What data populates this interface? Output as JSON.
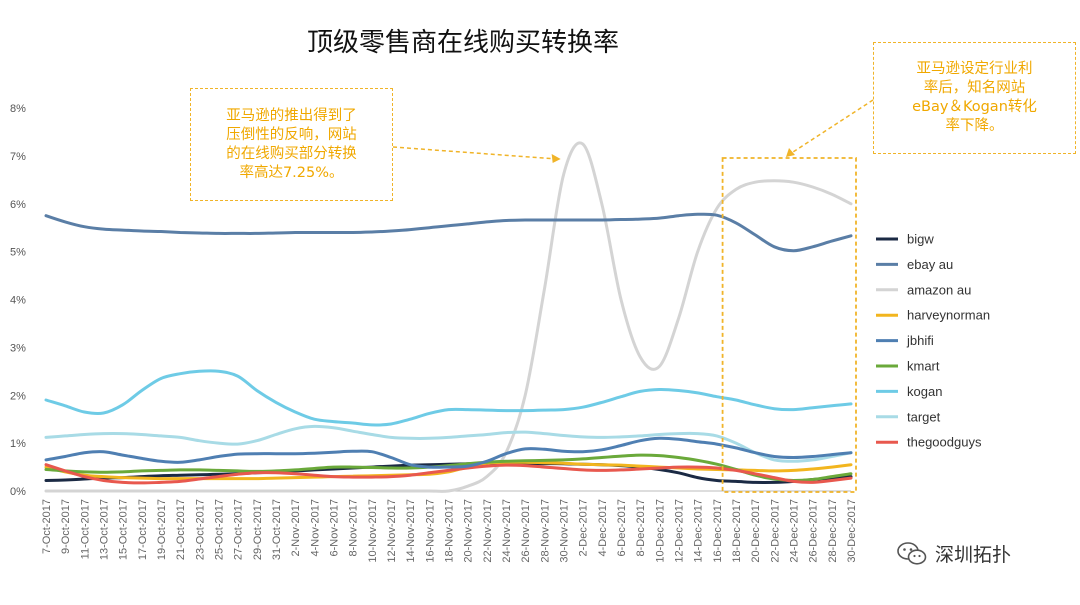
{
  "chart_data": {
    "type": "line",
    "title": "顶级零售商在线购买转换率",
    "xlabel": "",
    "ylabel": "",
    "ylim": [
      0,
      8
    ],
    "y_ticks": [
      "0%",
      "1%",
      "2%",
      "3%",
      "4%",
      "5%",
      "6%",
      "7%",
      "8%"
    ],
    "grid": false,
    "legend_position": "right",
    "x": [
      "7-Oct-2017",
      "9-Oct-2017",
      "11-Oct-2017",
      "13-Oct-2017",
      "15-Oct-2017",
      "17-Oct-2017",
      "19-Oct-2017",
      "21-Oct-2017",
      "23-Oct-2017",
      "25-Oct-2017",
      "27-Oct-2017",
      "29-Oct-2017",
      "31-Oct-2017",
      "2-Nov-2017",
      "4-Nov-2017",
      "6-Nov-2017",
      "8-Nov-2017",
      "10-Nov-2017",
      "12-Nov-2017",
      "14-Nov-2017",
      "16-Nov-2017",
      "18-Nov-2017",
      "20-Nov-2017",
      "22-Nov-2017",
      "24-Nov-2017",
      "26-Nov-2017",
      "28-Nov-2017",
      "30-Nov-2017",
      "2-Dec-2017",
      "4-Dec-2017",
      "6-Dec-2017",
      "8-Dec-2017",
      "10-Dec-2017",
      "12-Dec-2017",
      "14-Dec-2017",
      "16-Dec-2017",
      "18-Dec-2017",
      "20-Dec-2017",
      "22-Dec-2017",
      "24-Dec-2017",
      "26-Dec-2017",
      "28-Dec-2017",
      "30-Dec-2017"
    ],
    "series": [
      {
        "name": "bigw",
        "color": "#1b2a44",
        "values": [
          0.22,
          0.23,
          0.25,
          0.27,
          0.28,
          0.3,
          0.32,
          0.33,
          0.34,
          0.35,
          0.36,
          0.38,
          0.4,
          0.42,
          0.44,
          0.46,
          0.48,
          0.5,
          0.52,
          0.54,
          0.55,
          0.56,
          0.57,
          0.57,
          0.57,
          0.57,
          0.57,
          0.57,
          0.56,
          0.55,
          0.53,
          0.5,
          0.45,
          0.38,
          0.28,
          0.22,
          0.2,
          0.18,
          0.18,
          0.2,
          0.24,
          0.27,
          0.3
        ]
      },
      {
        "name": "ebay au",
        "color": "#5a7ea6",
        "values": [
          5.75,
          5.62,
          5.52,
          5.47,
          5.45,
          5.43,
          5.42,
          5.4,
          5.39,
          5.38,
          5.38,
          5.38,
          5.39,
          5.4,
          5.4,
          5.4,
          5.4,
          5.41,
          5.43,
          5.46,
          5.5,
          5.54,
          5.58,
          5.62,
          5.65,
          5.66,
          5.66,
          5.66,
          5.66,
          5.66,
          5.67,
          5.68,
          5.7,
          5.75,
          5.78,
          5.76,
          5.6,
          5.35,
          5.1,
          5.02,
          5.1,
          5.22,
          5.33
        ]
      },
      {
        "name": "amazon au",
        "color": "#d4d4d4",
        "values": [
          0,
          0,
          0,
          0,
          0,
          0,
          0,
          0,
          0,
          0,
          0,
          0,
          0,
          0,
          0,
          0,
          0,
          0,
          0,
          0,
          0,
          0,
          0.1,
          0.3,
          0.8,
          2.0,
          4.2,
          6.6,
          7.25,
          6.0,
          4.0,
          2.8,
          2.6,
          3.6,
          5.0,
          5.9,
          6.3,
          6.45,
          6.48,
          6.45,
          6.35,
          6.2,
          6.0
        ]
      },
      {
        "name": "harveynorman",
        "color": "#f2b51e",
        "values": [
          0.5,
          0.4,
          0.33,
          0.3,
          0.28,
          0.27,
          0.26,
          0.26,
          0.26,
          0.26,
          0.26,
          0.26,
          0.27,
          0.28,
          0.29,
          0.3,
          0.31,
          0.32,
          0.33,
          0.34,
          0.35,
          0.4,
          0.5,
          0.58,
          0.6,
          0.6,
          0.59,
          0.58,
          0.56,
          0.55,
          0.54,
          0.52,
          0.5,
          0.48,
          0.46,
          0.45,
          0.44,
          0.43,
          0.42,
          0.43,
          0.46,
          0.5,
          0.55
        ]
      },
      {
        "name": "jbhifi",
        "color": "#4f7fb2",
        "values": [
          0.65,
          0.72,
          0.8,
          0.82,
          0.75,
          0.68,
          0.62,
          0.6,
          0.65,
          0.72,
          0.77,
          0.78,
          0.78,
          0.78,
          0.79,
          0.81,
          0.83,
          0.82,
          0.7,
          0.55,
          0.5,
          0.5,
          0.52,
          0.62,
          0.78,
          0.88,
          0.87,
          0.83,
          0.82,
          0.86,
          0.95,
          1.05,
          1.1,
          1.08,
          1.03,
          0.98,
          0.9,
          0.8,
          0.72,
          0.7,
          0.72,
          0.76,
          0.8
        ]
      },
      {
        "name": "kmart",
        "color": "#6aa93a",
        "values": [
          0.45,
          0.42,
          0.4,
          0.39,
          0.4,
          0.42,
          0.43,
          0.44,
          0.44,
          0.43,
          0.42,
          0.41,
          0.42,
          0.44,
          0.47,
          0.5,
          0.5,
          0.49,
          0.48,
          0.48,
          0.5,
          0.53,
          0.57,
          0.6,
          0.62,
          0.63,
          0.64,
          0.65,
          0.67,
          0.7,
          0.73,
          0.75,
          0.74,
          0.7,
          0.64,
          0.56,
          0.45,
          0.33,
          0.25,
          0.22,
          0.24,
          0.3,
          0.36
        ]
      },
      {
        "name": "kogan",
        "color": "#6ecbe6",
        "values": [
          1.9,
          1.78,
          1.65,
          1.63,
          1.8,
          2.1,
          2.35,
          2.45,
          2.5,
          2.5,
          2.4,
          2.1,
          1.85,
          1.65,
          1.5,
          1.45,
          1.42,
          1.38,
          1.4,
          1.5,
          1.62,
          1.7,
          1.7,
          1.69,
          1.68,
          1.68,
          1.69,
          1.7,
          1.75,
          1.85,
          1.97,
          2.08,
          2.12,
          2.1,
          2.05,
          1.97,
          1.9,
          1.8,
          1.72,
          1.7,
          1.74,
          1.78,
          1.82
        ]
      },
      {
        "name": "target",
        "color": "#a8dbe6",
        "values": [
          1.12,
          1.15,
          1.18,
          1.2,
          1.2,
          1.18,
          1.15,
          1.12,
          1.05,
          1.0,
          0.98,
          1.05,
          1.18,
          1.3,
          1.35,
          1.32,
          1.25,
          1.18,
          1.12,
          1.1,
          1.1,
          1.12,
          1.15,
          1.18,
          1.22,
          1.23,
          1.2,
          1.16,
          1.13,
          1.12,
          1.13,
          1.15,
          1.18,
          1.2,
          1.2,
          1.15,
          1.0,
          0.8,
          0.65,
          0.62,
          0.65,
          0.72,
          0.8
        ]
      },
      {
        "name": "thegoodguys",
        "color": "#e8584e",
        "values": [
          0.55,
          0.42,
          0.3,
          0.22,
          0.18,
          0.17,
          0.18,
          0.2,
          0.25,
          0.3,
          0.35,
          0.38,
          0.38,
          0.36,
          0.33,
          0.3,
          0.29,
          0.29,
          0.3,
          0.33,
          0.38,
          0.43,
          0.48,
          0.52,
          0.54,
          0.53,
          0.5,
          0.47,
          0.44,
          0.43,
          0.44,
          0.46,
          0.48,
          0.5,
          0.5,
          0.48,
          0.43,
          0.36,
          0.28,
          0.2,
          0.18,
          0.22,
          0.27
        ]
      }
    ]
  },
  "annotations": {
    "left_lines": [
      "亚马逊的推出得到了",
      "压倒性的反响，网站",
      "的在线购买部分转换",
      "率高达7.25%。"
    ],
    "right_lines": [
      "亚马逊设定行业利",
      "率后，知名网站",
      "eBay＆Kogan转化",
      "率下降。"
    ]
  },
  "watermark": {
    "text": "深圳拓扑",
    "icon": "wechat-icon"
  },
  "colors": {
    "accent": "#f0b429"
  }
}
